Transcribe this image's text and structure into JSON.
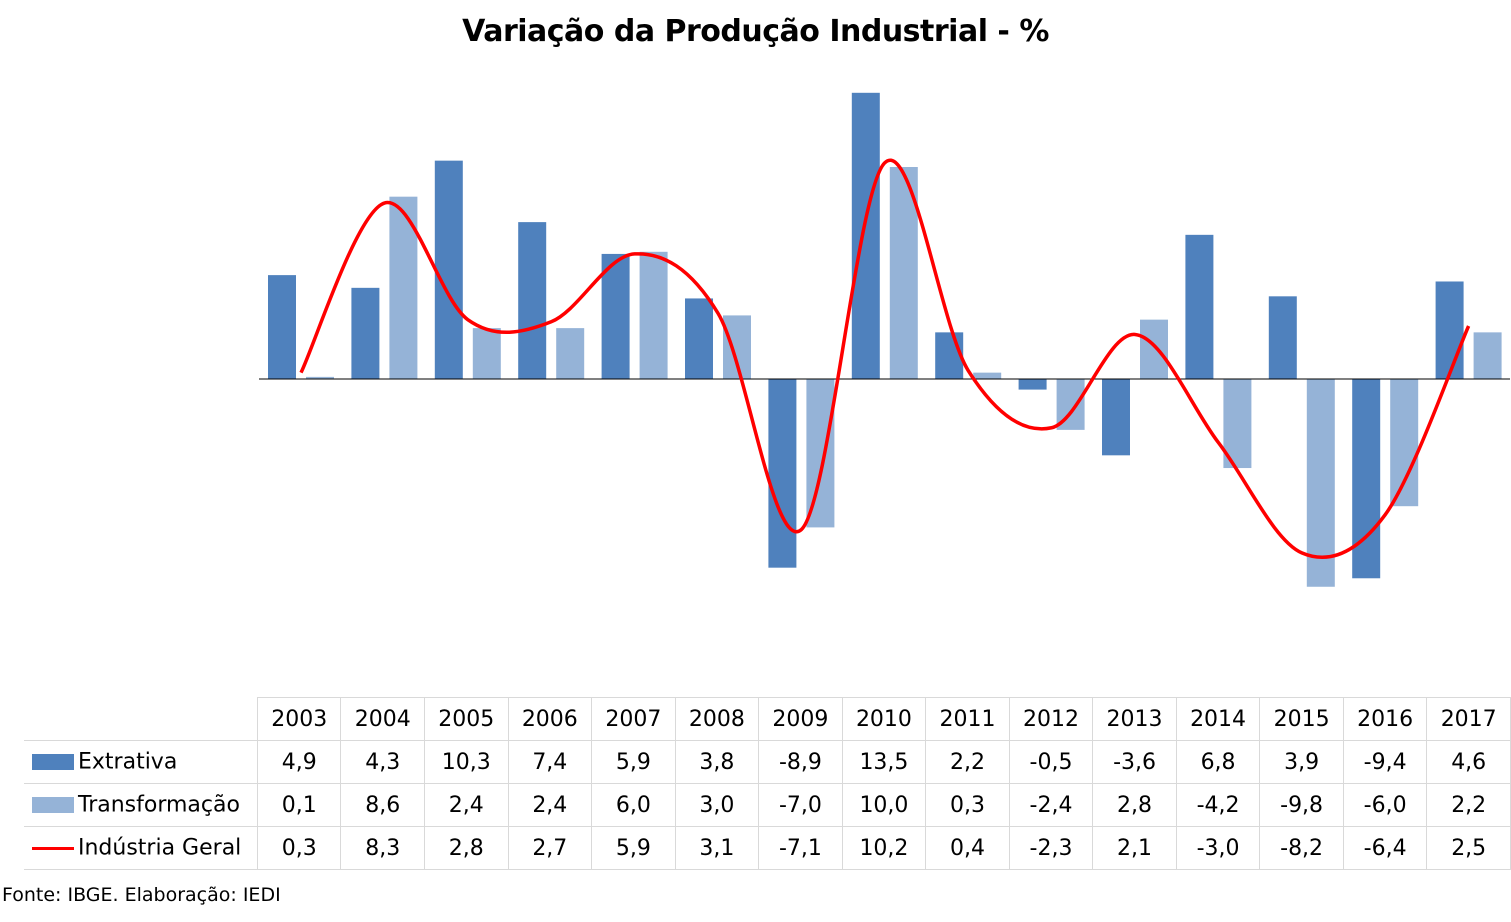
{
  "chart_data": {
    "type": "bar",
    "title": "Variação da Produção Industrial - %",
    "categories": [
      "2003",
      "2004",
      "2005",
      "2006",
      "2007",
      "2008",
      "2009",
      "2010",
      "2011",
      "2012",
      "2013",
      "2014",
      "2015",
      "2016",
      "2017"
    ],
    "series": [
      {
        "name": "Extrativa",
        "type": "bar",
        "color": "#4f81bd",
        "values": [
          4.9,
          4.3,
          10.3,
          7.4,
          5.9,
          3.8,
          -8.9,
          13.5,
          2.2,
          -0.5,
          -3.6,
          6.8,
          3.9,
          -9.4,
          4.6
        ],
        "labels": [
          "4,9",
          "4,3",
          "10,3",
          "7,4",
          "5,9",
          "3,8",
          "-8,9",
          "13,5",
          "2,2",
          "-0,5",
          "-3,6",
          "6,8",
          "3,9",
          "-9,4",
          "4,6"
        ]
      },
      {
        "name": "Transformação",
        "type": "bar",
        "color": "#95b3d7",
        "values": [
          0.1,
          8.6,
          2.4,
          2.4,
          6.0,
          3.0,
          -7.0,
          10.0,
          0.3,
          -2.4,
          2.8,
          -4.2,
          -9.8,
          -6.0,
          2.2
        ],
        "labels": [
          "0,1",
          "8,6",
          "2,4",
          "2,4",
          "6,0",
          "3,0",
          "-7,0",
          "10,0",
          "0,3",
          "-2,4",
          "2,8",
          "-4,2",
          "-9,8",
          "-6,0",
          "2,2"
        ]
      },
      {
        "name": "Indústria Geral",
        "type": "line",
        "color": "#ff0000",
        "values": [
          0.3,
          8.3,
          2.8,
          2.7,
          5.9,
          3.1,
          -7.1,
          10.2,
          0.4,
          -2.3,
          2.1,
          -3.0,
          -8.2,
          -6.4,
          2.5
        ],
        "labels": [
          "0,3",
          "8,3",
          "2,8",
          "2,7",
          "5,9",
          "3,1",
          "-7,1",
          "10,2",
          "0,4",
          "-2,3",
          "2,1",
          "-3,0",
          "-8,2",
          "-6,4",
          "2,5"
        ]
      }
    ],
    "ylim": [
      -14,
      14
    ],
    "grid": false,
    "legend": "data-table"
  },
  "source": "Fonte: IBGE. Elaboração: IEDI"
}
